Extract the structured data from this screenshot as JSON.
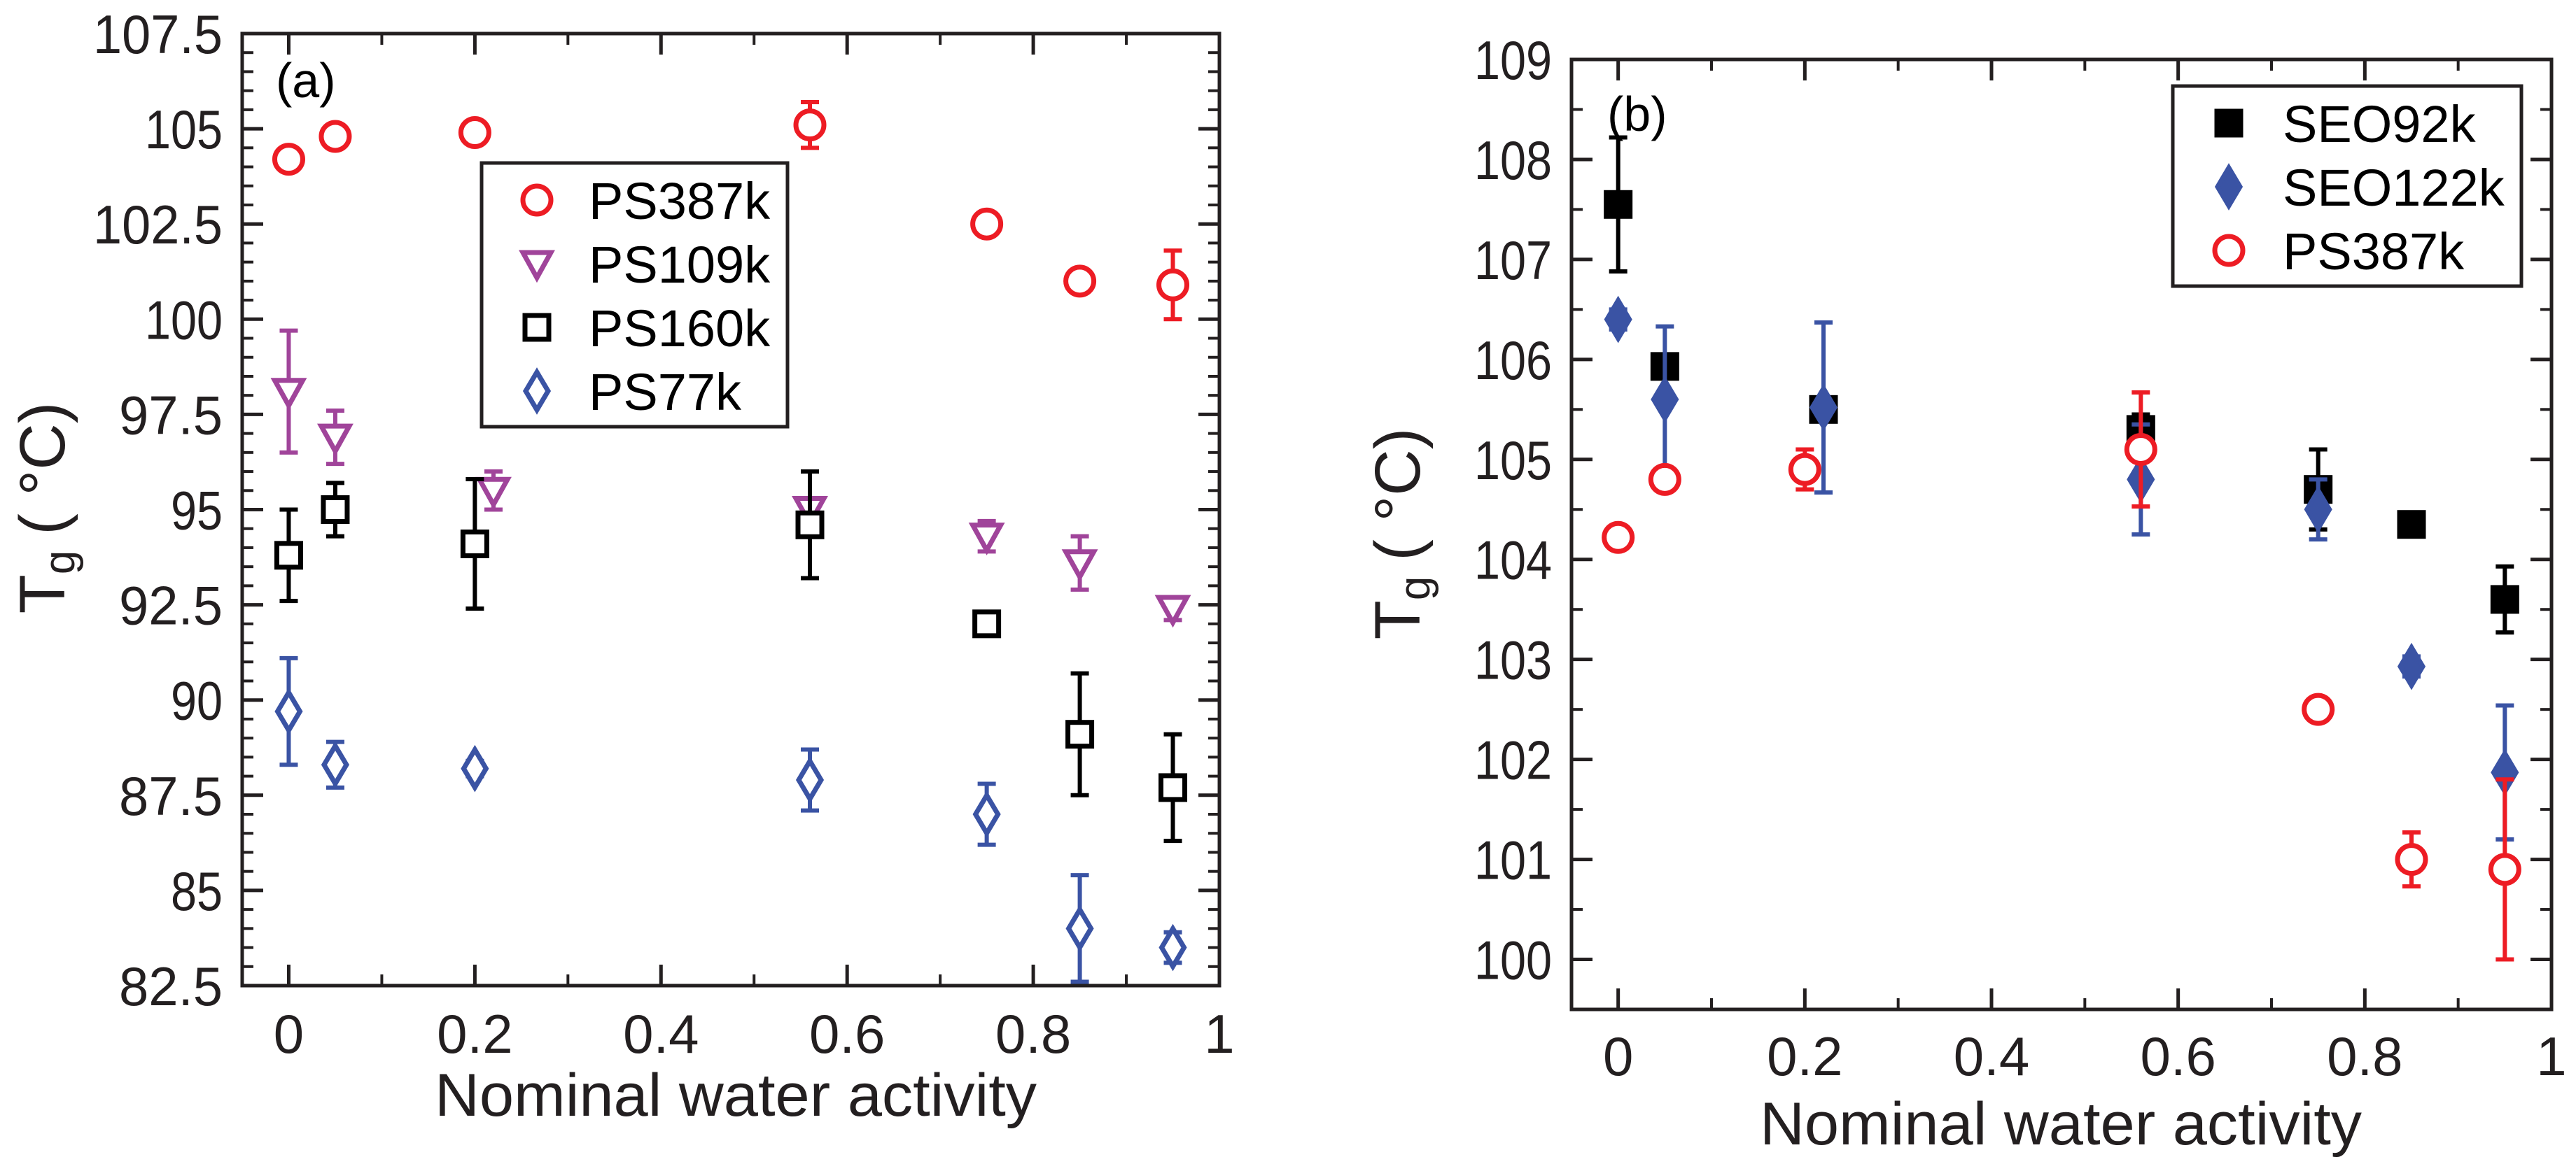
{
  "chart_data": [
    {
      "type": "scatter",
      "panel_label": "(a)",
      "xlabel": "Nominal water activity",
      "ylabel": "T",
      "ylabel_sub": "g",
      "ylabel_unit": "( °C)",
      "xlim": [
        -0.05,
        1
      ],
      "ylim": [
        82.5,
        107.5
      ],
      "xticks": [
        0,
        0.2,
        0.4,
        0.6,
        0.8,
        1
      ],
      "xtick_labels": [
        "0",
        "0.2",
        "0.4",
        "0.6",
        "0.8",
        "1"
      ],
      "yticks": [
        82.5,
        85,
        87.5,
        90,
        92.5,
        95,
        97.5,
        100,
        102.5,
        105,
        107.5
      ],
      "ytick_labels": [
        "82.5",
        "85",
        "87.5",
        "90",
        "92.5",
        "95",
        "97.5",
        "100",
        "102.5",
        "105",
        "107.5"
      ],
      "legend_position": "upper-center",
      "series": [
        {
          "name": "PS387k",
          "color": "#ed1c24",
          "marker": "circle-open",
          "x": [
            0,
            0.05,
            0.2,
            0.56,
            0.75,
            0.85,
            0.95
          ],
          "y": [
            104.2,
            104.8,
            104.9,
            105.1,
            102.5,
            101.0,
            100.9
          ],
          "err": [
            0.1,
            0.1,
            0.1,
            0.6,
            0.1,
            0.1,
            0.9
          ]
        },
        {
          "name": "PS109k",
          "color": "#a0449a",
          "marker": "triangle-down-open",
          "x": [
            0,
            0.05,
            0.22,
            0.56,
            0.75,
            0.85,
            0.95
          ],
          "y": [
            98.1,
            96.9,
            95.5,
            95.0,
            94.3,
            93.6,
            92.4
          ],
          "err": [
            1.6,
            0.7,
            0.5,
            0.1,
            0.4,
            0.7,
            0.3
          ]
        },
        {
          "name": "PS160k",
          "color": "#000000",
          "marker": "square-open",
          "x": [
            0,
            0.05,
            0.2,
            0.56,
            0.75,
            0.85,
            0.95
          ],
          "y": [
            93.8,
            95.0,
            94.1,
            94.6,
            92.0,
            89.1,
            87.7
          ],
          "err": [
            1.2,
            0.7,
            1.7,
            1.4,
            0.1,
            1.6,
            1.4
          ]
        },
        {
          "name": "PS77k",
          "color": "#3a53a4",
          "marker": "diamond-open",
          "x": [
            0,
            0.05,
            0.2,
            0.56,
            0.75,
            0.85,
            0.95
          ],
          "y": [
            89.7,
            88.3,
            88.2,
            87.9,
            87.0,
            84.0,
            83.5
          ],
          "err": [
            1.4,
            0.6,
            0.2,
            0.8,
            0.8,
            1.4,
            0.4
          ]
        }
      ]
    },
    {
      "type": "scatter",
      "panel_label": "(b)",
      "xlabel": "Nominal water activity",
      "ylabel": "T",
      "ylabel_sub": "g",
      "ylabel_unit": "( °C)",
      "xlim": [
        -0.05,
        1
      ],
      "ylim": [
        99.5,
        109
      ],
      "xticks": [
        0,
        0.2,
        0.4,
        0.6,
        0.8,
        1
      ],
      "xtick_labels": [
        "0",
        "0.2",
        "0.4",
        "0.6",
        "0.8",
        "1"
      ],
      "yticks": [
        100,
        101,
        102,
        103,
        104,
        105,
        106,
        107,
        108,
        109
      ],
      "ytick_labels": [
        "100",
        "101",
        "102",
        "103",
        "104",
        "105",
        "106",
        "107",
        "108",
        "109"
      ],
      "legend_position": "top-right",
      "series": [
        {
          "name": "SEO92k",
          "color": "#000000",
          "marker": "square-filled",
          "x": [
            0,
            0.05,
            0.22,
            0.56,
            0.75,
            0.85,
            0.95
          ],
          "y": [
            107.55,
            105.93,
            105.5,
            105.3,
            104.7,
            104.35,
            103.6
          ],
          "err": [
            0.67,
            0.1,
            0.1,
            0.15,
            0.4,
            0.05,
            0.33
          ]
        },
        {
          "name": "SEO122k",
          "color": "#3a53a4",
          "marker": "diamond-filled",
          "x": [
            0,
            0.05,
            0.22,
            0.56,
            0.75,
            0.85,
            0.95
          ],
          "y": [
            106.4,
            105.6,
            105.52,
            104.8,
            104.5,
            102.93,
            101.87
          ],
          "err": [
            0.1,
            0.73,
            0.85,
            0.55,
            0.3,
            0.1,
            0.67
          ]
        },
        {
          "name": "PS387k",
          "color": "#ed1c24",
          "marker": "circle-open",
          "x": [
            0,
            0.05,
            0.2,
            0.56,
            0.75,
            0.85,
            0.95
          ],
          "y": [
            104.22,
            104.8,
            104.9,
            105.1,
            102.5,
            101.0,
            100.9
          ],
          "err": [
            0.05,
            0.07,
            0.2,
            0.57,
            0.05,
            0.27,
            0.9
          ]
        }
      ]
    }
  ]
}
